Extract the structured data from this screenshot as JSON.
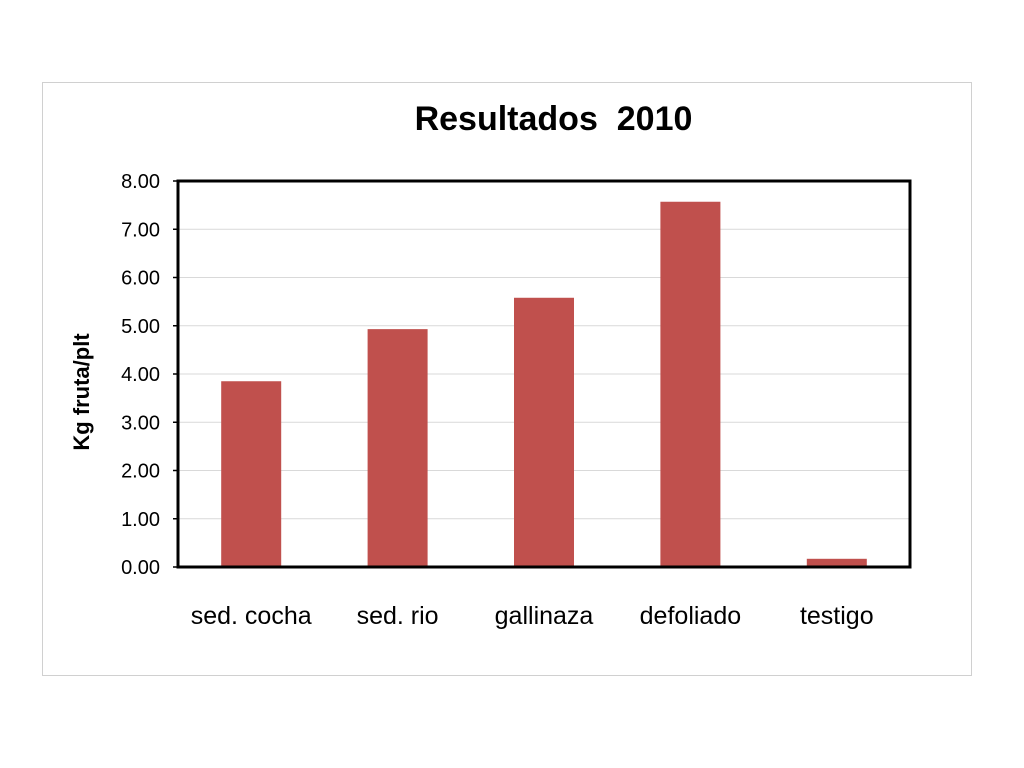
{
  "chart_data": {
    "type": "bar",
    "title": "Resultados  2010",
    "xlabel": "",
    "ylabel": "Kg fruta/plt",
    "categories": [
      "sed. cocha",
      "sed. rio",
      "gallinaza",
      "defoliado",
      "testigo"
    ],
    "values": [
      3.85,
      4.93,
      5.58,
      7.57,
      0.17
    ],
    "ylim": [
      0,
      8
    ],
    "y_ticks": [
      "0.00",
      "1.00",
      "2.00",
      "3.00",
      "4.00",
      "5.00",
      "6.00",
      "7.00",
      "8.00"
    ],
    "bar_color": "#c0504d",
    "grid": true,
    "legend": false
  }
}
